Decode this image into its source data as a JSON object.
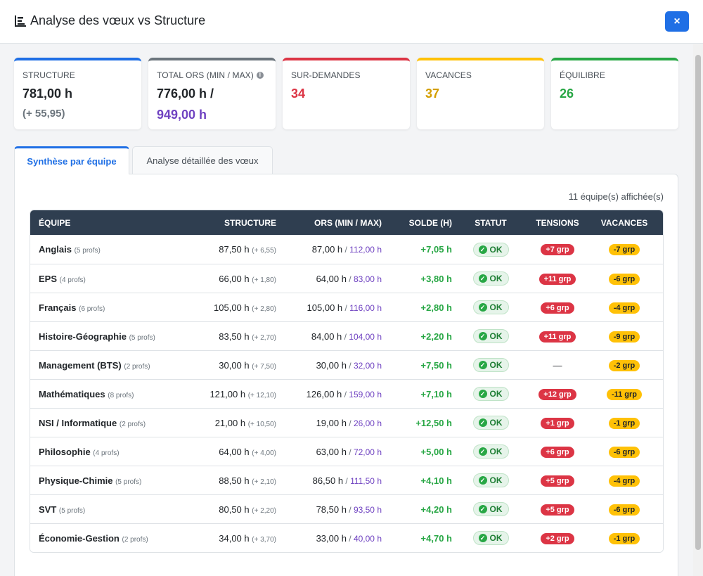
{
  "header": {
    "title": "Analyse des vœux vs Structure",
    "close_label": "×"
  },
  "cards": [
    {
      "label": "STRUCTURE",
      "value": "781,00 h",
      "sub": "(+ 55,95)",
      "color": "#1f6fe5",
      "value_color": "#212529"
    },
    {
      "label": "TOTAL ORS (MIN / MAX)",
      "value": "776,00 h /",
      "value2": "949,00 h",
      "color": "#6c757d",
      "value_color": "#212529",
      "value2_color": "#6f42c1"
    },
    {
      "label": "SUR-DEMANDES",
      "value": "34",
      "color": "#dc3545",
      "value_color": "#dc3545"
    },
    {
      "label": "VACANCES",
      "value": "37",
      "color": "#ffc107",
      "value_color": "#d39e00"
    },
    {
      "label": "ÉQUILIBRE",
      "value": "26",
      "color": "#28a745",
      "value_color": "#28a745"
    }
  ],
  "tabs": [
    {
      "label": "Synthèse par équipe",
      "active": true
    },
    {
      "label": "Analyse détaillée des vœux",
      "active": false
    }
  ],
  "count_text": "11 équipe(s) affichée(s)",
  "table": {
    "headers": [
      "ÉQUIPE",
      "STRUCTURE",
      "ORS (MIN / MAX)",
      "SOLDE (H)",
      "STATUT",
      "TENSIONS",
      "VACANCES"
    ],
    "rows": [
      {
        "name": "Anglais",
        "profs": "(5 profs)",
        "structure": "87,50 h",
        "delta": "(+ 6,55)",
        "ors_min": "87,00 h",
        "ors_max": "112,00 h",
        "solde": "+7,05 h",
        "status": "OK",
        "tensions": "+7 grp",
        "vacances": "-7 grp"
      },
      {
        "name": "EPS",
        "profs": "(4 profs)",
        "structure": "66,00 h",
        "delta": "(+ 1,80)",
        "ors_min": "64,00 h",
        "ors_max": "83,00 h",
        "solde": "+3,80 h",
        "status": "OK",
        "tensions": "+11 grp",
        "vacances": "-6 grp"
      },
      {
        "name": "Français",
        "profs": "(6 profs)",
        "structure": "105,00 h",
        "delta": "(+ 2,80)",
        "ors_min": "105,00 h",
        "ors_max": "116,00 h",
        "solde": "+2,80 h",
        "status": "OK",
        "tensions": "+6 grp",
        "vacances": "-4 grp"
      },
      {
        "name": "Histoire-Géographie",
        "profs": "(5 profs)",
        "structure": "83,50 h",
        "delta": "(+ 2,70)",
        "ors_min": "84,00 h",
        "ors_max": "104,00 h",
        "solde": "+2,20 h",
        "status": "OK",
        "tensions": "+11 grp",
        "vacances": "-9 grp"
      },
      {
        "name": "Management (BTS)",
        "profs": "(2 profs)",
        "structure": "30,00 h",
        "delta": "(+ 7,50)",
        "ors_min": "30,00 h",
        "ors_max": "32,00 h",
        "solde": "+7,50 h",
        "status": "OK",
        "tensions": "—",
        "vacances": "-2 grp"
      },
      {
        "name": "Mathématiques",
        "profs": "(8 profs)",
        "structure": "121,00 h",
        "delta": "(+ 12,10)",
        "ors_min": "126,00 h",
        "ors_max": "159,00 h",
        "solde": "+7,10 h",
        "status": "OK",
        "tensions": "+12 grp",
        "vacances": "-11 grp"
      },
      {
        "name": "NSI / Informatique",
        "profs": "(2 profs)",
        "structure": "21,00 h",
        "delta": "(+ 10,50)",
        "ors_min": "19,00 h",
        "ors_max": "26,00 h",
        "solde": "+12,50 h",
        "status": "OK",
        "tensions": "+1 grp",
        "vacances": "-1 grp"
      },
      {
        "name": "Philosophie",
        "profs": "(4 profs)",
        "structure": "64,00 h",
        "delta": "(+ 4,00)",
        "ors_min": "63,00 h",
        "ors_max": "72,00 h",
        "solde": "+5,00 h",
        "status": "OK",
        "tensions": "+6 grp",
        "vacances": "-6 grp"
      },
      {
        "name": "Physique-Chimie",
        "profs": "(5 profs)",
        "structure": "88,50 h",
        "delta": "(+ 2,10)",
        "ors_min": "86,50 h",
        "ors_max": "111,50 h",
        "solde": "+4,10 h",
        "status": "OK",
        "tensions": "+5 grp",
        "vacances": "-4 grp"
      },
      {
        "name": "SVT",
        "profs": "(5 profs)",
        "structure": "80,50 h",
        "delta": "(+ 2,20)",
        "ors_min": "78,50 h",
        "ors_max": "93,50 h",
        "solde": "+4,20 h",
        "status": "OK",
        "tensions": "+5 grp",
        "vacances": "-6 grp"
      },
      {
        "name": "Économie-Gestion",
        "profs": "(2 profs)",
        "structure": "34,00 h",
        "delta": "(+ 3,70)",
        "ors_min": "33,00 h",
        "ors_max": "40,00 h",
        "solde": "+4,70 h",
        "status": "OK",
        "tensions": "+2 grp",
        "vacances": "-1 grp"
      }
    ]
  }
}
